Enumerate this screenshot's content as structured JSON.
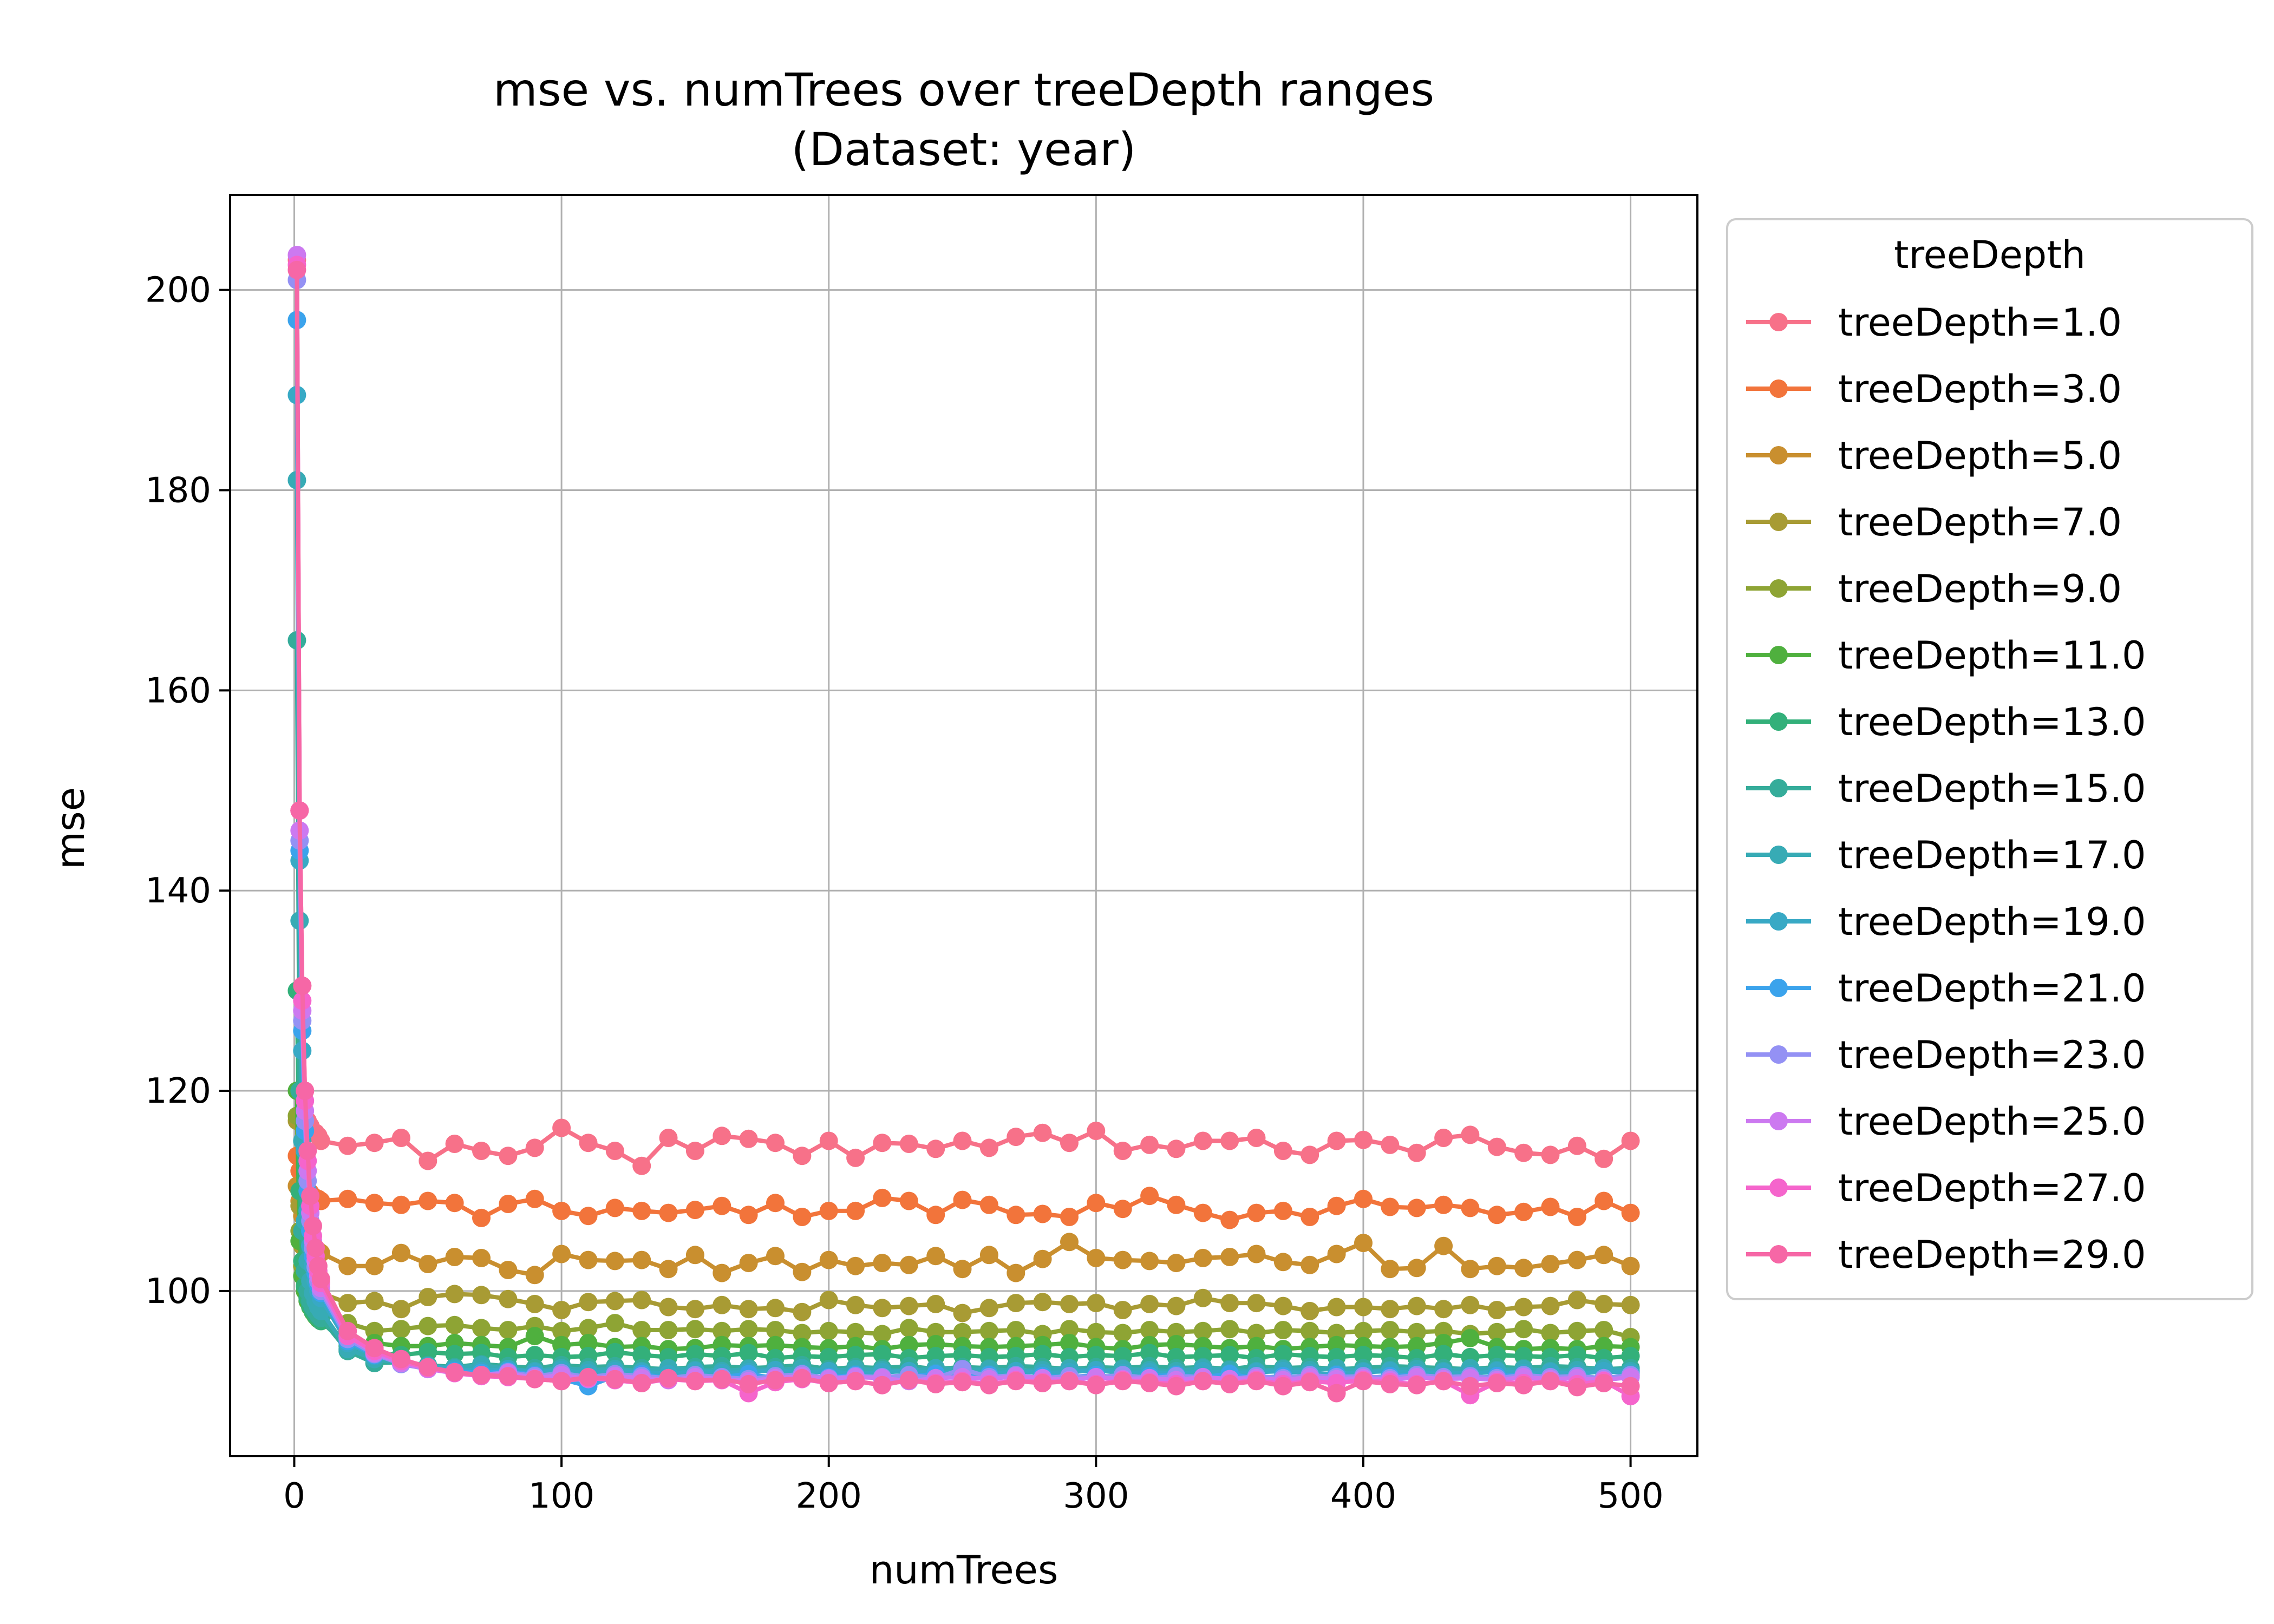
{
  "chart_data": {
    "type": "line",
    "title": "mse vs. numTrees over treeDepth ranges",
    "subtitle": "(Dataset: year)",
    "xlabel": "numTrees",
    "ylabel": "mse",
    "xlim": [
      -24,
      525
    ],
    "ylim": [
      83.5,
      209.5
    ],
    "x_ticks": [
      0,
      100,
      200,
      300,
      400,
      500
    ],
    "y_ticks": [
      100,
      120,
      140,
      160,
      180,
      200
    ],
    "grid": true,
    "legend": {
      "title": "treeDepth",
      "placement": "outside-right"
    },
    "x": [
      1,
      2,
      3,
      4,
      5,
      6,
      7,
      8,
      9,
      10,
      20,
      30,
      40,
      50,
      60,
      70,
      80,
      90,
      100,
      110,
      120,
      130,
      140,
      150,
      160,
      170,
      180,
      190,
      200,
      210,
      220,
      230,
      240,
      250,
      260,
      270,
      280,
      290,
      300,
      310,
      320,
      330,
      340,
      350,
      360,
      370,
      380,
      390,
      400,
      410,
      420,
      430,
      440,
      450,
      460,
      470,
      480,
      490,
      500
    ],
    "series": [
      {
        "name": "treeDepth=1.0",
        "color": "#f77189",
        "values": [
          203.0,
          148.0,
          130.5,
          120.0,
          117.0,
          116.5,
          116.0,
          115.8,
          115.5,
          115.0,
          114.5,
          114.8,
          115.3,
          113.0,
          114.7,
          114.0,
          113.5,
          114.3,
          116.3,
          114.8,
          114.0,
          112.5,
          115.3,
          114.0,
          115.5,
          115.2,
          114.8,
          113.5,
          115.0,
          113.3,
          114.8,
          114.7,
          114.2,
          115.0,
          114.3,
          115.4,
          115.8,
          114.8,
          116.0,
          114.0,
          114.6,
          114.2,
          115.0,
          115.0,
          115.3,
          114.0,
          113.6,
          115.0,
          115.1,
          114.6,
          113.8,
          115.3,
          115.6,
          114.4,
          113.8,
          113.6,
          114.5,
          113.2,
          115.0
        ]
      },
      {
        "name": "treeDepth=3.0",
        "color": "#f2743b",
        "values": [
          113.5,
          112.0,
          111.0,
          110.5,
          110.0,
          109.8,
          109.5,
          109.3,
          109.2,
          109.0,
          109.2,
          108.8,
          108.6,
          109.0,
          108.8,
          107.3,
          108.7,
          109.2,
          108.0,
          107.5,
          108.3,
          108.0,
          107.8,
          108.1,
          108.5,
          107.6,
          108.8,
          107.4,
          108.0,
          108.0,
          109.3,
          109.0,
          107.6,
          109.1,
          108.6,
          107.6,
          107.7,
          107.4,
          108.8,
          108.2,
          109.5,
          108.6,
          107.8,
          107.1,
          107.8,
          108.0,
          107.4,
          108.5,
          109.2,
          108.4,
          108.3,
          108.6,
          108.3,
          107.6,
          107.9,
          108.4,
          107.4,
          109.0,
          107.8
        ]
      },
      {
        "name": "treeDepth=5.0",
        "color": "#c98f2f",
        "values": [
          110.5,
          109.0,
          107.5,
          106.5,
          105.5,
          105.0,
          104.5,
          104.2,
          104.0,
          103.8,
          102.5,
          102.5,
          103.8,
          102.7,
          103.4,
          103.3,
          102.1,
          101.6,
          103.7,
          103.1,
          103.0,
          103.1,
          102.2,
          103.6,
          101.8,
          102.8,
          103.5,
          101.9,
          103.1,
          102.5,
          102.8,
          102.6,
          103.5,
          102.2,
          103.6,
          101.8,
          103.2,
          104.9,
          103.3,
          103.1,
          103.0,
          102.8,
          103.3,
          103.4,
          103.7,
          102.9,
          102.6,
          103.7,
          104.8,
          102.2,
          102.3,
          104.5,
          102.2,
          102.5,
          102.3,
          102.7,
          103.1,
          103.6,
          102.5
        ]
      },
      {
        "name": "treeDepth=7.0",
        "color": "#a89b34",
        "values": [
          117.0,
          108.5,
          104.5,
          102.5,
          101.5,
          101.0,
          100.5,
          100.2,
          100.0,
          99.8,
          98.8,
          99.0,
          98.2,
          99.4,
          99.7,
          99.6,
          99.2,
          98.7,
          98.1,
          98.9,
          99.0,
          99.1,
          98.4,
          98.2,
          98.6,
          98.2,
          98.3,
          97.9,
          99.1,
          98.6,
          98.3,
          98.5,
          98.7,
          97.8,
          98.3,
          98.8,
          98.9,
          98.7,
          98.8,
          98.1,
          98.7,
          98.5,
          99.3,
          98.8,
          98.8,
          98.5,
          98.0,
          98.4,
          98.4,
          98.2,
          98.5,
          98.2,
          98.6,
          98.1,
          98.4,
          98.5,
          99.1,
          98.7,
          98.6
        ]
      },
      {
        "name": "treeDepth=9.0",
        "color": "#8ea434",
        "values": [
          117.5,
          106.0,
          102.5,
          101.0,
          100.0,
          99.3,
          98.7,
          98.3,
          98.0,
          97.8,
          96.8,
          96.0,
          96.2,
          96.5,
          96.6,
          96.3,
          96.1,
          96.5,
          96.0,
          96.3,
          96.8,
          96.1,
          96.1,
          96.2,
          96.0,
          96.2,
          96.1,
          95.8,
          96.0,
          95.9,
          95.7,
          96.3,
          95.9,
          95.9,
          96.0,
          96.1,
          95.7,
          96.2,
          95.9,
          95.8,
          96.1,
          95.9,
          96.0,
          96.2,
          95.8,
          96.1,
          96.0,
          95.8,
          96.0,
          96.1,
          95.9,
          96.0,
          95.7,
          95.9,
          96.2,
          95.8,
          96.0,
          96.1,
          95.4
        ]
      },
      {
        "name": "treeDepth=11.0",
        "color": "#4fb03e",
        "values": [
          120.0,
          105.0,
          101.5,
          100.0,
          99.0,
          98.4,
          97.9,
          97.5,
          97.2,
          97.0,
          95.0,
          94.8,
          94.5,
          94.5,
          94.8,
          94.6,
          94.4,
          95.5,
          94.6,
          94.8,
          94.4,
          94.5,
          94.2,
          94.3,
          94.6,
          94.5,
          94.6,
          94.4,
          94.3,
          94.5,
          94.2,
          94.6,
          94.7,
          94.5,
          94.4,
          94.5,
          94.6,
          94.8,
          94.4,
          94.2,
          94.6,
          94.7,
          94.5,
          94.3,
          94.5,
          94.2,
          94.4,
          94.6,
          94.5,
          94.4,
          94.5,
          94.8,
          95.3,
          94.4,
          94.2,
          94.3,
          94.2,
          94.5,
          94.4
        ]
      },
      {
        "name": "treeDepth=13.0",
        "color": "#33b07a",
        "values": [
          130.0,
          110.0,
          103.0,
          100.5,
          99.3,
          98.5,
          98.0,
          97.6,
          97.3,
          97.0,
          94.5,
          93.8,
          93.6,
          93.9,
          93.7,
          93.8,
          93.4,
          93.6,
          93.4,
          93.5,
          93.9,
          93.6,
          93.4,
          93.7,
          93.5,
          93.8,
          93.3,
          93.5,
          93.4,
          93.6,
          93.7,
          93.3,
          93.5,
          93.6,
          93.4,
          93.5,
          93.7,
          93.4,
          93.6,
          93.5,
          93.8,
          93.4,
          93.5,
          93.6,
          93.3,
          93.7,
          93.5,
          93.4,
          93.6,
          93.5,
          93.3,
          93.7,
          93.4,
          93.6,
          93.5,
          93.4,
          93.6,
          93.3,
          93.5
        ]
      },
      {
        "name": "treeDepth=15.0",
        "color": "#35ac9a",
        "values": [
          165.0,
          120.0,
          106.0,
          102.0,
          100.0,
          99.0,
          98.4,
          98.0,
          97.6,
          97.3,
          94.0,
          92.8,
          92.9,
          92.6,
          92.4,
          92.7,
          92.5,
          92.3,
          92.6,
          92.4,
          92.5,
          92.3,
          92.2,
          92.4,
          92.5,
          92.3,
          92.4,
          92.6,
          92.2,
          92.4,
          92.3,
          92.5,
          92.2,
          92.4,
          92.3,
          92.5,
          92.4,
          92.2,
          92.4,
          92.3,
          92.5,
          92.3,
          92.4,
          92.2,
          92.5,
          92.3,
          92.4,
          92.2,
          92.3,
          92.5,
          92.4,
          92.3,
          92.2,
          92.4,
          92.3,
          92.5,
          92.4,
          92.2,
          92.3
        ]
      },
      {
        "name": "treeDepth=17.0",
        "color": "#37abb5",
        "values": [
          181.0,
          137.0,
          115.0,
          107.0,
          103.0,
          101.0,
          99.8,
          99.0,
          98.4,
          98.0,
          94.2,
          93.2,
          92.8,
          92.5,
          92.3,
          92.6,
          92.2,
          92.0,
          92.3,
          92.1,
          92.2,
          92.0,
          92.3,
          92.1,
          92.0,
          92.2,
          92.1,
          92.3,
          92.0,
          92.2,
          92.1,
          92.0,
          92.3,
          92.1,
          92.2,
          92.0,
          92.1,
          92.3,
          92.0,
          92.2,
          92.1,
          92.0,
          92.3,
          92.1,
          92.0,
          92.2,
          92.1,
          92.3,
          92.0,
          92.1,
          92.2,
          92.0,
          92.3,
          92.1,
          92.2,
          92.0,
          92.1,
          92.3,
          92.0
        ]
      },
      {
        "name": "treeDepth=19.0",
        "color": "#38a9c5",
        "values": [
          189.5,
          143.0,
          124.0,
          114.0,
          108.0,
          104.5,
          102.5,
          101.0,
          100.0,
          99.3,
          94.8,
          93.5,
          93.0,
          92.5,
          92.2,
          92.0,
          92.2,
          91.9,
          92.1,
          91.8,
          92.0,
          91.9,
          91.7,
          92.0,
          91.8,
          91.9,
          92.1,
          91.8,
          92.0,
          91.7,
          91.9,
          92.0,
          91.8,
          91.9,
          91.7,
          92.0,
          91.8,
          91.9,
          92.1,
          91.8,
          91.9,
          91.7,
          92.0,
          91.8,
          91.9,
          92.0,
          91.8,
          91.7,
          91.9,
          92.0,
          91.8,
          91.9,
          91.7,
          92.0,
          91.8,
          91.9,
          91.7,
          92.0,
          91.8
        ]
      },
      {
        "name": "treeDepth=21.0",
        "color": "#3ba3ec",
        "values": [
          197.0,
          144.0,
          126.0,
          116.0,
          110.0,
          106.0,
          103.5,
          101.8,
          100.6,
          99.8,
          95.0,
          93.6,
          92.8,
          92.3,
          92.0,
          91.8,
          92.0,
          91.6,
          91.2,
          90.5,
          91.5,
          91.7,
          91.3,
          91.6,
          91.4,
          91.7,
          91.3,
          91.5,
          91.4,
          91.6,
          91.3,
          91.5,
          91.7,
          91.4,
          91.6,
          91.3,
          91.5,
          91.4,
          91.6,
          91.3,
          91.5,
          91.6,
          91.4,
          91.7,
          91.3,
          91.5,
          91.4,
          91.6,
          91.3,
          91.5,
          91.6,
          91.4,
          91.3,
          91.5,
          91.6,
          91.4,
          91.5,
          91.3,
          91.6
        ]
      },
      {
        "name": "treeDepth=23.0",
        "color": "#9491f4",
        "values": [
          201.0,
          145.0,
          127.0,
          117.0,
          111.0,
          107.0,
          104.3,
          102.4,
          101.0,
          100.0,
          95.2,
          93.7,
          92.7,
          92.2,
          91.9,
          91.6,
          91.9,
          91.5,
          91.8,
          91.4,
          91.7,
          91.5,
          91.3,
          91.6,
          91.4,
          91.2,
          91.5,
          91.7,
          91.3,
          91.5,
          91.4,
          91.6,
          91.3,
          92.2,
          91.4,
          91.6,
          91.3,
          91.5,
          91.4,
          91.6,
          91.3,
          91.5,
          91.4,
          91.2,
          91.5,
          91.3,
          91.6,
          91.4,
          91.5,
          91.3,
          91.6,
          91.4,
          91.5,
          91.3,
          91.6,
          91.4,
          91.5,
          91.3,
          91.6
        ]
      },
      {
        "name": "treeDepth=25.0",
        "color": "#cc79f0",
        "values": [
          203.5,
          146.0,
          128.0,
          118.0,
          112.0,
          107.8,
          105.0,
          103.0,
          101.5,
          100.3,
          95.5,
          93.8,
          92.8,
          92.2,
          91.8,
          91.6,
          91.8,
          91.3,
          91.6,
          91.2,
          91.5,
          91.3,
          91.1,
          91.4,
          91.2,
          91.0,
          91.3,
          91.5,
          91.2,
          91.4,
          91.3,
          91.0,
          91.3,
          91.4,
          91.2,
          91.5,
          91.3,
          91.1,
          91.4,
          91.2,
          91.3,
          91.1,
          91.4,
          91.2,
          91.3,
          91.1,
          91.4,
          91.2,
          91.3,
          91.1,
          91.4,
          91.2,
          91.3,
          91.1,
          91.4,
          91.2,
          91.3,
          91.1,
          91.4
        ]
      },
      {
        "name": "treeDepth=27.0",
        "color": "#f565cc",
        "values": [
          202.5,
          148.0,
          129.0,
          119.0,
          113.0,
          108.5,
          105.5,
          103.5,
          102.0,
          100.8,
          95.5,
          94.0,
          93.0,
          92.3,
          91.8,
          91.5,
          91.4,
          91.2,
          91.0,
          91.3,
          91.1,
          90.8,
          91.2,
          91.0,
          91.1,
          89.8,
          90.9,
          91.2,
          90.8,
          91.0,
          90.6,
          91.1,
          90.8,
          91.0,
          90.7,
          91.1,
          90.9,
          91.0,
          90.7,
          91.1,
          90.9,
          90.7,
          91.0,
          90.8,
          91.1,
          90.7,
          91.0,
          90.8,
          91.1,
          90.9,
          90.7,
          91.0,
          89.6,
          90.9,
          90.8,
          91.0,
          90.7,
          91.0,
          89.5
        ]
      },
      {
        "name": "treeDepth=29.0",
        "color": "#f667a6",
        "values": [
          202.0,
          148.0,
          130.5,
          120.0,
          114.0,
          109.5,
          106.5,
          104.3,
          102.5,
          101.2,
          96.0,
          94.3,
          93.2,
          92.4,
          91.9,
          91.6,
          91.5,
          91.2,
          91.0,
          91.4,
          91.2,
          90.8,
          91.3,
          91.0,
          91.2,
          90.7,
          91.1,
          91.3,
          90.8,
          91.0,
          90.6,
          91.1,
          90.7,
          90.9,
          90.6,
          91.0,
          90.8,
          91.0,
          90.6,
          91.0,
          90.8,
          90.5,
          91.0,
          90.7,
          91.0,
          90.5,
          90.9,
          89.8,
          91.0,
          90.7,
          90.6,
          91.0,
          90.5,
          90.8,
          90.6,
          91.0,
          90.4,
          90.8,
          90.5
        ]
      }
    ]
  }
}
